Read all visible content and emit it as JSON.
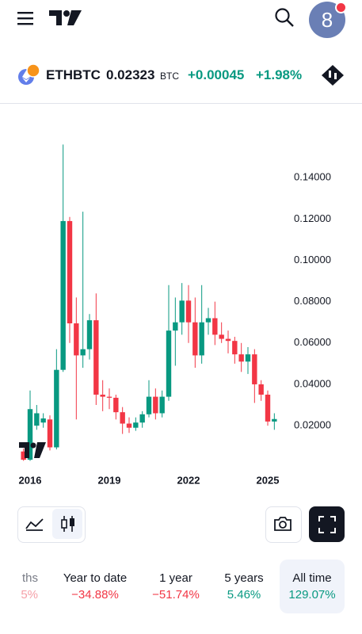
{
  "header": {
    "avatar": "8"
  },
  "ticker": {
    "symbol": "ETHBTC",
    "price": "0.02323",
    "currency": "BTC",
    "change": "+0.00045",
    "change_percent": "+1.98%"
  },
  "chart": {
    "type": "candlestick",
    "x": [
      2015.75,
      2016,
      2016.25,
      2016.5,
      2016.75,
      2017,
      2017.25,
      2017.5,
      2017.75,
      2018,
      2018.25,
      2018.5,
      2018.75,
      2019,
      2019.25,
      2019.5,
      2019.75,
      2020,
      2020.25,
      2020.5,
      2020.75,
      2021,
      2021.25,
      2021.5,
      2021.75,
      2022,
      2022.25,
      2022.5,
      2022.75,
      2023,
      2023.25,
      2023.5,
      2023.75,
      2024,
      2024.25,
      2024.5,
      2024.75,
      2025,
      2025.25
    ],
    "open": [
      0.0075,
      0.0035,
      0.02,
      0.0215,
      0.023,
      0.0095,
      0.047,
      0.119,
      0.0695,
      0.054,
      0.057,
      0.071,
      0.035,
      0.034,
      0.0335,
      0.0265,
      0.021,
      0.019,
      0.0215,
      0.0255,
      0.034,
      0.026,
      0.034,
      0.066,
      0.07,
      0.0805,
      0.07,
      0.054,
      0.07,
      0.072,
      0.064,
      0.062,
      0.061,
      0.0545,
      0.051,
      0.0545,
      0.04,
      0.035,
      0.022
    ],
    "high": [
      0.009,
      0.037,
      0.03,
      0.026,
      0.025,
      0.057,
      0.156,
      0.121,
      0.082,
      0.1235,
      0.074,
      0.084,
      0.042,
      0.038,
      0.035,
      0.029,
      0.024,
      0.024,
      0.027,
      0.042,
      0.038,
      0.037,
      0.088,
      0.082,
      0.089,
      0.088,
      0.082,
      0.088,
      0.077,
      0.08,
      0.07,
      0.066,
      0.063,
      0.06,
      0.058,
      0.057,
      0.042,
      0.037,
      0.026
    ],
    "low": [
      0.003,
      0.003,
      0.018,
      0.019,
      0.008,
      0.0085,
      0.046,
      0.06,
      0.023,
      0.048,
      0.052,
      0.03,
      0.027,
      0.028,
      0.023,
      0.016,
      0.0165,
      0.0175,
      0.019,
      0.024,
      0.023,
      0.024,
      0.032,
      0.049,
      0.064,
      0.06,
      0.048,
      0.05,
      0.064,
      0.059,
      0.06,
      0.055,
      0.05,
      0.046,
      0.045,
      0.031,
      0.032,
      0.02,
      0.018
    ],
    "close": [
      0.0035,
      0.028,
      0.026,
      0.0235,
      0.0095,
      0.047,
      0.119,
      0.0695,
      0.054,
      0.057,
      0.071,
      0.035,
      0.034,
      0.0335,
      0.0265,
      0.021,
      0.019,
      0.0215,
      0.0255,
      0.034,
      0.026,
      0.034,
      0.066,
      0.07,
      0.0805,
      0.07,
      0.054,
      0.07,
      0.072,
      0.064,
      0.062,
      0.061,
      0.0545,
      0.051,
      0.0545,
      0.04,
      0.035,
      0.022,
      0.0232
    ],
    "up_color": "#089981",
    "down_color": "#f23645",
    "xlim": [
      2014.86,
      2025.81
    ],
    "xticks": [
      2016,
      2019,
      2022,
      2025
    ],
    "ylim": [
      -0.0022,
      0.1646
    ],
    "yticks": [
      {
        "value": 0.02,
        "label": "0.02000"
      },
      {
        "value": 0.04,
        "label": "0.04000"
      },
      {
        "value": 0.06,
        "label": "0.06000"
      },
      {
        "value": 0.08,
        "label": "0.08000"
      },
      {
        "value": 0.1,
        "label": "0.10000"
      },
      {
        "value": 0.12,
        "label": "0.12000"
      },
      {
        "value": 0.14,
        "label": "0.14000"
      }
    ]
  },
  "periods": [
    {
      "label": "ths",
      "change": "5%"
    },
    {
      "label": "Year to date",
      "change": "−34.88%"
    },
    {
      "label": "1 year",
      "change": "−51.74%"
    },
    {
      "label": "5 years",
      "change": "5.46%"
    },
    {
      "label": "All time",
      "change": "129.07%"
    }
  ]
}
